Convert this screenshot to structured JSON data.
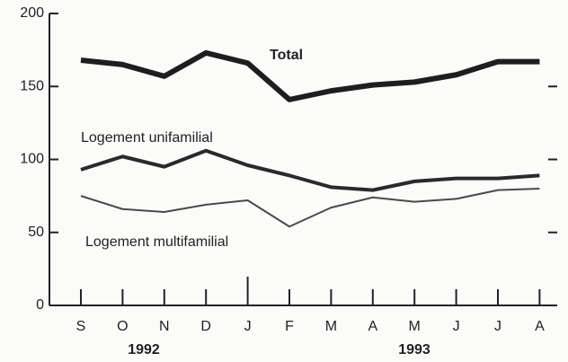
{
  "chart_data": {
    "type": "line",
    "categories": [
      "S",
      "O",
      "N",
      "D",
      "J",
      "F",
      "M",
      "A",
      "M",
      "J",
      "J",
      "A"
    ],
    "year_labels": [
      "1992",
      "1993"
    ],
    "series": [
      {
        "name": "Total",
        "color": "#1e1e1e",
        "values": [
          168,
          165,
          157,
          173,
          166,
          141,
          147,
          151,
          153,
          158,
          167,
          167
        ]
      },
      {
        "name": "Logement unifamilial",
        "color": "#2a2a2a",
        "values": [
          93,
          102,
          95,
          106,
          96,
          89,
          81,
          79,
          85,
          87,
          87,
          89
        ]
      },
      {
        "name": "Logement multifamilial",
        "color": "#4a4a4a",
        "values": [
          75,
          66,
          64,
          69,
          72,
          54,
          67,
          74,
          71,
          73,
          79,
          80
        ]
      }
    ],
    "ylim": [
      0,
      200
    ],
    "yticks": [
      0,
      50,
      100,
      150,
      200
    ]
  }
}
